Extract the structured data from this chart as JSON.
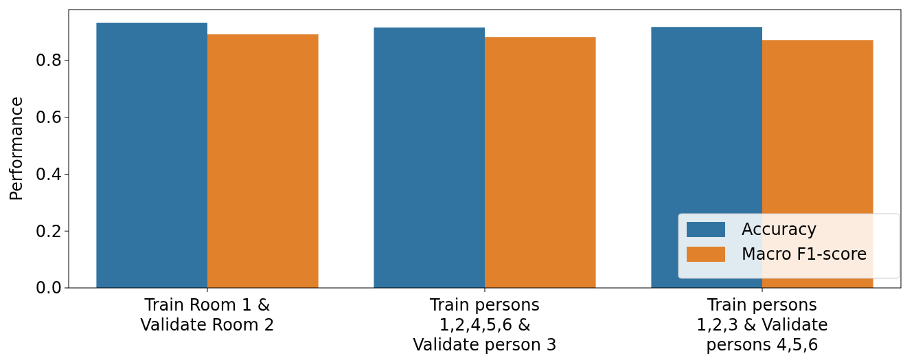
{
  "chart_data": {
    "type": "bar",
    "ylabel": "Performance",
    "categories": [
      "Train Room 1 & Validate Room 2",
      "Train persons 1,2,4,5,6 & Validate person 3",
      "Train persons 1,2,3 & Validate persons 4,5,6"
    ],
    "series": [
      {
        "name": "Accuracy",
        "color": "#3274a1",
        "values": [
          0.933,
          0.916,
          0.918
        ]
      },
      {
        "name": "Macro F1-score",
        "color": "#e1812c",
        "values": [
          0.892,
          0.882,
          0.872
        ]
      }
    ],
    "ylim": [
      0,
      0.979
    ],
    "yticks": [
      {
        "value": 0,
        "label": "0.0"
      },
      0.2,
      0.4,
      0.6,
      0.8
    ],
    "legend": "bottom right"
  }
}
